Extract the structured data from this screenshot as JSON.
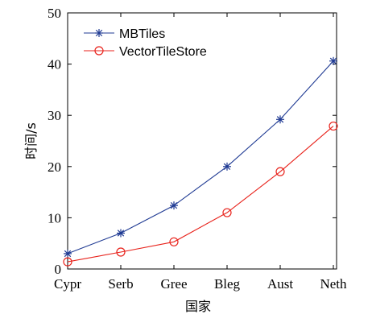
{
  "chart_data": {
    "type": "line",
    "title": "",
    "xlabel": "国家",
    "ylabel": "时间/s",
    "categories": [
      "Cypr",
      "Serb",
      "Gree",
      "Bleg",
      "Aust",
      "Neth"
    ],
    "ylim": [
      0,
      50
    ],
    "yticks": [
      0,
      10,
      20,
      30,
      40,
      50
    ],
    "grid": false,
    "legend_position": "top-left",
    "series": [
      {
        "name": "MBTiles",
        "marker": "asterisk",
        "color": "#1f3a93",
        "values": [
          3.0,
          7.0,
          12.4,
          20.0,
          29.2,
          40.6
        ]
      },
      {
        "name": "VectorTileStore",
        "marker": "circle",
        "color": "#e8221b",
        "values": [
          1.4,
          3.3,
          5.3,
          11.0,
          19.0,
          27.9
        ]
      }
    ]
  }
}
